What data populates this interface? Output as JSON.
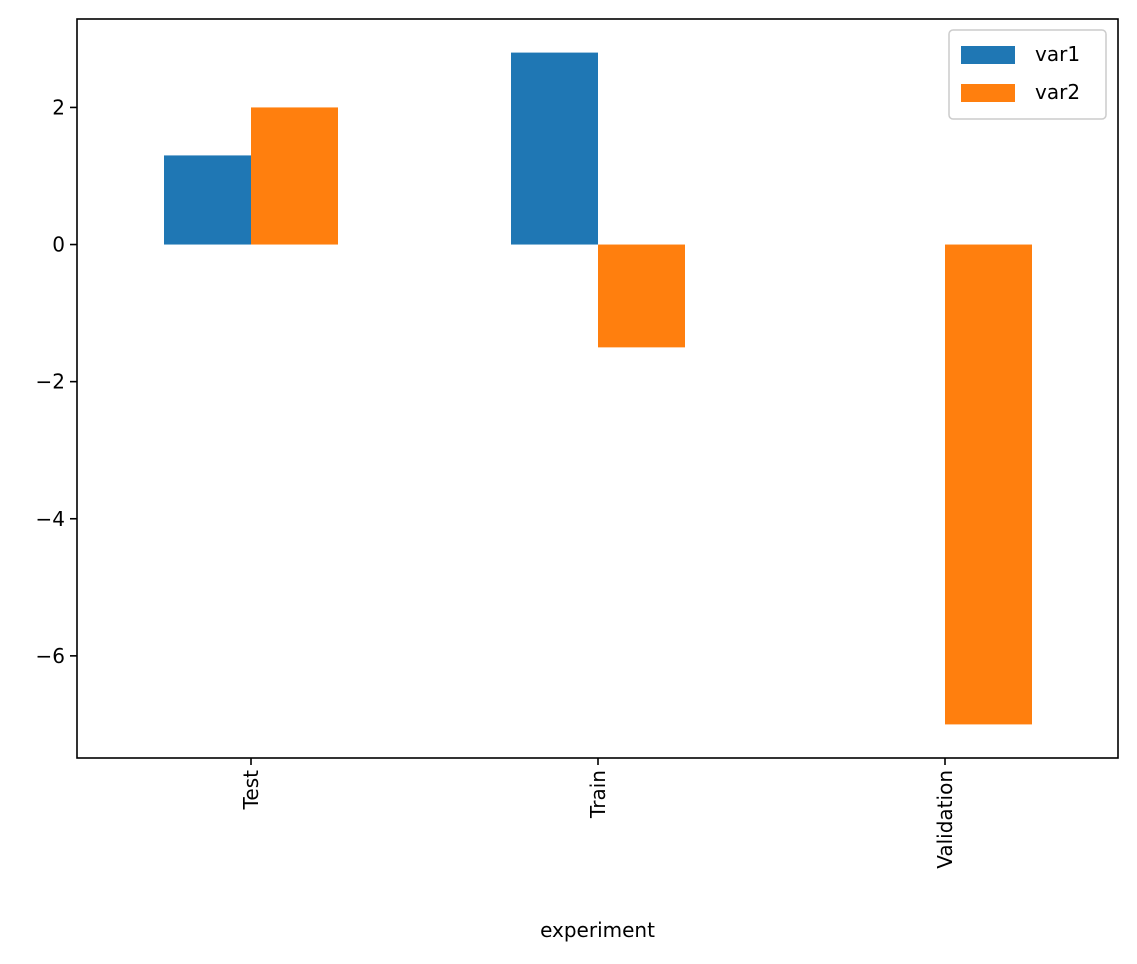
{
  "chart_data": {
    "type": "bar",
    "title": "",
    "xlabel": "experiment",
    "ylabel": "",
    "categories": [
      "Test",
      "Train",
      "Validation"
    ],
    "series": [
      {
        "name": "var1",
        "color": "#1f77b4",
        "values": [
          1.3,
          2.8,
          0.0
        ]
      },
      {
        "name": "var2",
        "color": "#ff7f0e",
        "values": [
          2.0,
          -1.5,
          -7.0
        ]
      }
    ],
    "ylim": [
      -7.49,
      3.29
    ],
    "yticks": [
      -6,
      -4,
      -2,
      0,
      2
    ],
    "ytick_labels": [
      "−6",
      "−4",
      "−2",
      "0",
      "2"
    ],
    "grid": false,
    "legend": {
      "position": "top-right"
    }
  }
}
